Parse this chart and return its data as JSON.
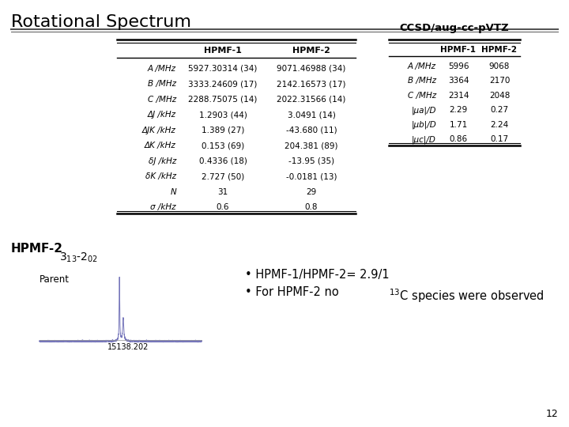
{
  "title": "Rotational Spectrum",
  "page_number": "12",
  "table1_rows": [
    [
      "A /MHz",
      "5927.30314 (34)",
      "9071.46988 (34)"
    ],
    [
      "B /MHz",
      "3333.24609 (17)",
      "2142.16573 (17)"
    ],
    [
      "C /MHz",
      "2288.75075 (14)",
      "2022.31566 (14)"
    ],
    [
      "ΔJ /kHz",
      "1.2903 (44)",
      "3.0491 (14)"
    ],
    [
      "ΔJK /kHz",
      "1.389 (27)",
      "-43.680 (11)"
    ],
    [
      "ΔK /kHz",
      "0.153 (69)",
      "204.381 (89)"
    ],
    [
      "δJ /kHz",
      "0.4336 (18)",
      "-13.95 (35)"
    ],
    [
      "δK /kHz",
      "2.727 (50)",
      "-0.0181 (13)"
    ],
    [
      "N",
      "31",
      "29"
    ],
    [
      "σ /kHz",
      "0.6",
      "0.8"
    ]
  ],
  "table2_title": "CCSD/aug-cc-pVTZ",
  "table2_rows": [
    [
      "A /MHz",
      "5996",
      "9068"
    ],
    [
      "B /MHz",
      "3364",
      "2170"
    ],
    [
      "C /MHz",
      "2314",
      "2048"
    ],
    [
      "|μa|/D",
      "2.29",
      "0.27"
    ],
    [
      "|μb|/D",
      "1.71",
      "2.24"
    ],
    [
      "|μc|/D",
      "0.86",
      "0.17"
    ]
  ],
  "bottom_label": "HPMF-2",
  "bottom_sublabel": "Parent",
  "bottom_freq": "15138.202",
  "bullet1": "HPMF-1/HPMF-2= 2.9/1",
  "bullet2": "For HPMF-2 no ",
  "bullet2b": "C species were observed",
  "bg_color": "#ffffff",
  "text_color": "#000000"
}
